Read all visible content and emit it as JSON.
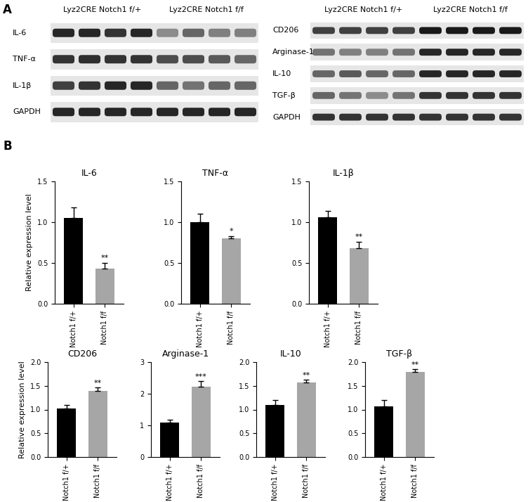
{
  "panel_labels": [
    "A",
    "B"
  ],
  "blots": [
    {
      "lane_groups": [
        "Lyz2CRE Notch1 f/+",
        "Lyz2CRE Notch1 f/f"
      ],
      "lanes_per_group": 4,
      "rows": [
        {
          "label": "IL-6",
          "intensities": [
            0.85,
            0.85,
            0.8,
            0.85,
            0.45,
            0.6,
            0.5,
            0.5
          ]
        },
        {
          "label": "TNF-α",
          "intensities": [
            0.8,
            0.82,
            0.8,
            0.8,
            0.7,
            0.7,
            0.65,
            0.6
          ]
        },
        {
          "label": "IL-1β",
          "intensities": [
            0.75,
            0.8,
            0.85,
            0.85,
            0.6,
            0.55,
            0.6,
            0.6
          ]
        },
        {
          "label": "GAPDH",
          "intensities": [
            0.85,
            0.85,
            0.85,
            0.85,
            0.85,
            0.85,
            0.85,
            0.85
          ]
        }
      ]
    },
    {
      "lane_groups": [
        "Lyz2CRE Notch1 f/+",
        "Lyz2CRE Notch1 f/f"
      ],
      "lanes_per_group": 4,
      "rows": [
        {
          "label": "CD206",
          "intensities": [
            0.75,
            0.75,
            0.75,
            0.75,
            0.9,
            0.9,
            0.9,
            0.9
          ]
        },
        {
          "label": "Arginase-1",
          "intensities": [
            0.55,
            0.5,
            0.5,
            0.55,
            0.85,
            0.85,
            0.85,
            0.85
          ]
        },
        {
          "label": "IL-10",
          "intensities": [
            0.6,
            0.65,
            0.6,
            0.6,
            0.85,
            0.85,
            0.85,
            0.85
          ]
        },
        {
          "label": "TGF-β",
          "intensities": [
            0.6,
            0.55,
            0.45,
            0.55,
            0.8,
            0.8,
            0.8,
            0.8
          ]
        },
        {
          "label": "GAPDH",
          "intensities": [
            0.8,
            0.8,
            0.8,
            0.8,
            0.8,
            0.8,
            0.8,
            0.8
          ]
        }
      ]
    }
  ],
  "chart_data": [
    {
      "type": "bar",
      "title": "IL-6",
      "y_label": "Relative expression level",
      "categories": [
        "Notch1 f/+",
        "Notch1 f/f"
      ],
      "values": [
        1.05,
        0.43
      ],
      "errors": [
        0.13,
        0.07
      ],
      "colors": [
        "#000000",
        "#a6a6a6"
      ],
      "annotations": [
        {
          "category": 1,
          "text": "**"
        }
      ],
      "ylim": [
        0,
        1.5
      ],
      "yticks": [
        {
          "value": 0,
          "label": "0.0"
        },
        0.5,
        {
          "value": 1,
          "label": "1.0"
        },
        1.5
      ]
    },
    {
      "type": "bar",
      "title": "TNF-α",
      "categories": [
        "Notch1 f/+",
        "Notch1 f/f"
      ],
      "values": [
        1.0,
        0.8
      ],
      "errors": [
        0.1,
        0.03
      ],
      "colors": [
        "#000000",
        "#a6a6a6"
      ],
      "annotations": [
        {
          "category": 1,
          "text": "*"
        }
      ],
      "ylim": [
        0,
        1.5
      ],
      "yticks": [
        {
          "value": 0,
          "label": "0.0"
        },
        0.5,
        {
          "value": 1,
          "label": "1.0"
        },
        1.5
      ]
    },
    {
      "type": "bar",
      "title": "IL-1β",
      "categories": [
        "Notch1 f/+",
        "Notch1 f/f"
      ],
      "values": [
        1.06,
        0.68
      ],
      "errors": [
        0.08,
        0.08
      ],
      "colors": [
        "#000000",
        "#a6a6a6"
      ],
      "annotations": [
        {
          "category": 1,
          "text": "**"
        }
      ],
      "ylim": [
        0,
        1.5
      ],
      "yticks": [
        {
          "value": 0,
          "label": "0.0"
        },
        0.5,
        {
          "value": 1,
          "label": "1.0"
        },
        1.5
      ]
    },
    {
      "type": "bar",
      "title": "CD206",
      "y_label": "Relative expression level",
      "categories": [
        "Notch1 f/+",
        "Notch1 f/f"
      ],
      "values": [
        1.02,
        1.4
      ],
      "errors": [
        0.07,
        0.06
      ],
      "colors": [
        "#000000",
        "#a6a6a6"
      ],
      "annotations": [
        {
          "category": 1,
          "text": "**"
        }
      ],
      "ylim": [
        0,
        2
      ],
      "yticks": [
        {
          "value": 0,
          "label": "0.0"
        },
        0.5,
        {
          "value": 1,
          "label": "1.0"
        },
        1.5,
        {
          "value": 2,
          "label": "2.0"
        }
      ]
    },
    {
      "type": "bar",
      "title": "Arginase-1",
      "categories": [
        "Notch1 f/+",
        "Notch1 f/f"
      ],
      "values": [
        1.08,
        2.22
      ],
      "errors": [
        0.09,
        0.18
      ],
      "colors": [
        "#000000",
        "#a6a6a6"
      ],
      "annotations": [
        {
          "category": 1,
          "text": "***"
        }
      ],
      "ylim": [
        0,
        3
      ],
      "yticks": [
        0,
        1,
        2,
        3
      ]
    },
    {
      "type": "bar",
      "title": "IL-10",
      "categories": [
        "Notch1 f/+",
        "Notch1 f/f"
      ],
      "values": [
        1.09,
        1.57
      ],
      "errors": [
        0.11,
        0.06
      ],
      "colors": [
        "#000000",
        "#a6a6a6"
      ],
      "annotations": [
        {
          "category": 1,
          "text": "**"
        }
      ],
      "ylim": [
        0,
        2
      ],
      "yticks": [
        {
          "value": 0,
          "label": "0.0"
        },
        0.5,
        {
          "value": 1,
          "label": "1.0"
        },
        1.5,
        {
          "value": 2,
          "label": "2.0"
        }
      ]
    },
    {
      "type": "bar",
      "title": "TGF-β",
      "categories": [
        "Notch1 f/+",
        "Notch1 f/f"
      ],
      "values": [
        1.07,
        1.79
      ],
      "errors": [
        0.13,
        0.06
      ],
      "colors": [
        "#000000",
        "#a6a6a6"
      ],
      "annotations": [
        {
          "category": 1,
          "text": "**"
        }
      ],
      "ylim": [
        0,
        2
      ],
      "yticks": [
        {
          "value": 0,
          "label": "0.0"
        },
        0.5,
        {
          "value": 1,
          "label": "1.0"
        },
        1.5,
        {
          "value": 2,
          "label": "2.0"
        }
      ]
    }
  ]
}
